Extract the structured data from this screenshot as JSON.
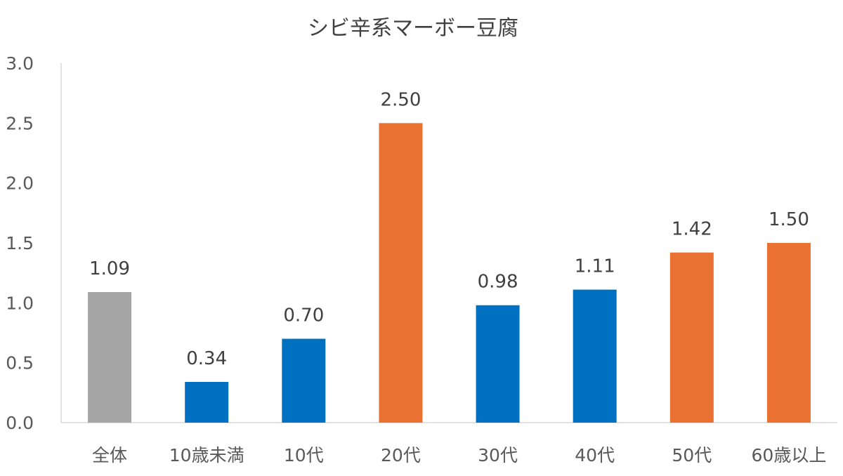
{
  "chart_data": {
    "type": "bar",
    "title": "シビ辛系マーボー豆腐",
    "xlabel": "",
    "ylabel": "",
    "ylim": [
      0,
      3.0
    ],
    "yticks": [
      "0.0",
      "0.5",
      "1.0",
      "1.5",
      "2.0",
      "2.5",
      "3.0"
    ],
    "grid": false,
    "categories": [
      "全体",
      "10歳未満",
      "10代",
      "20代",
      "30代",
      "40代",
      "50代",
      "60歳以上"
    ],
    "values": [
      1.09,
      0.34,
      0.7,
      2.5,
      0.98,
      1.11,
      1.42,
      1.5
    ],
    "value_labels": [
      "1.09",
      "0.34",
      "0.70",
      "2.50",
      "0.98",
      "1.11",
      "1.42",
      "1.50"
    ],
    "bar_colors": [
      "#A6A6A6",
      "#0070C0",
      "#0070C0",
      "#E97132",
      "#0070C0",
      "#0070C0",
      "#E97132",
      "#E97132"
    ]
  }
}
